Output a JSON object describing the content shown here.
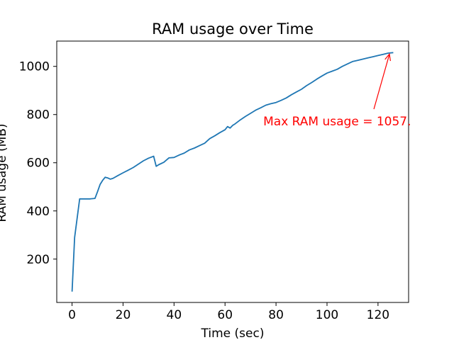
{
  "chart_data": {
    "type": "line",
    "title": "RAM usage over Time",
    "xlabel": "Time (sec)",
    "ylabel": "RAM usage (MB)",
    "xlim": [
      -6,
      132
    ],
    "ylim": [
      20,
      1105
    ],
    "xticks": [
      0,
      20,
      40,
      60,
      80,
      100,
      120
    ],
    "yticks": [
      200,
      400,
      600,
      800,
      1000
    ],
    "grid": false,
    "series": [
      {
        "color": "#1f77b4",
        "x": [
          0,
          1,
          3,
          5,
          7,
          9,
          10,
          11,
          12,
          13,
          14,
          15,
          16,
          18,
          20,
          22,
          24,
          26,
          28,
          30,
          32,
          33,
          34,
          36,
          38,
          40,
          42,
          44,
          46,
          48,
          50,
          52,
          54,
          56,
          58,
          60,
          61,
          62,
          63,
          64,
          66,
          68,
          70,
          72,
          74,
          76,
          78,
          80,
          82,
          84,
          86,
          88,
          90,
          92,
          94,
          96,
          98,
          100,
          102,
          104,
          106,
          108,
          110,
          112,
          114,
          116,
          118,
          120,
          122,
          124,
          126
        ],
        "y": [
          65,
          290,
          450,
          450,
          450,
          452,
          480,
          510,
          527,
          540,
          537,
          532,
          535,
          547,
          558,
          569,
          580,
          594,
          608,
          619,
          627,
          585,
          592,
          602,
          620,
          622,
          632,
          640,
          653,
          661,
          671,
          681,
          700,
          712,
          725,
          737,
          750,
          744,
          755,
          762,
          778,
          792,
          805,
          818,
          828,
          839,
          845,
          850,
          859,
          869,
          882,
          894,
          905,
          920,
          933,
          947,
          960,
          972,
          980,
          988,
          1000,
          1010,
          1020,
          1025,
          1030,
          1035,
          1040,
          1045,
          1050,
          1055,
          1057
        ]
      }
    ],
    "annotation": {
      "text": "Max RAM usage = 1057.",
      "color": "#ff0000",
      "point": [
        124.5,
        1057
      ],
      "text_anchor_data": [
        75,
        755
      ]
    }
  }
}
